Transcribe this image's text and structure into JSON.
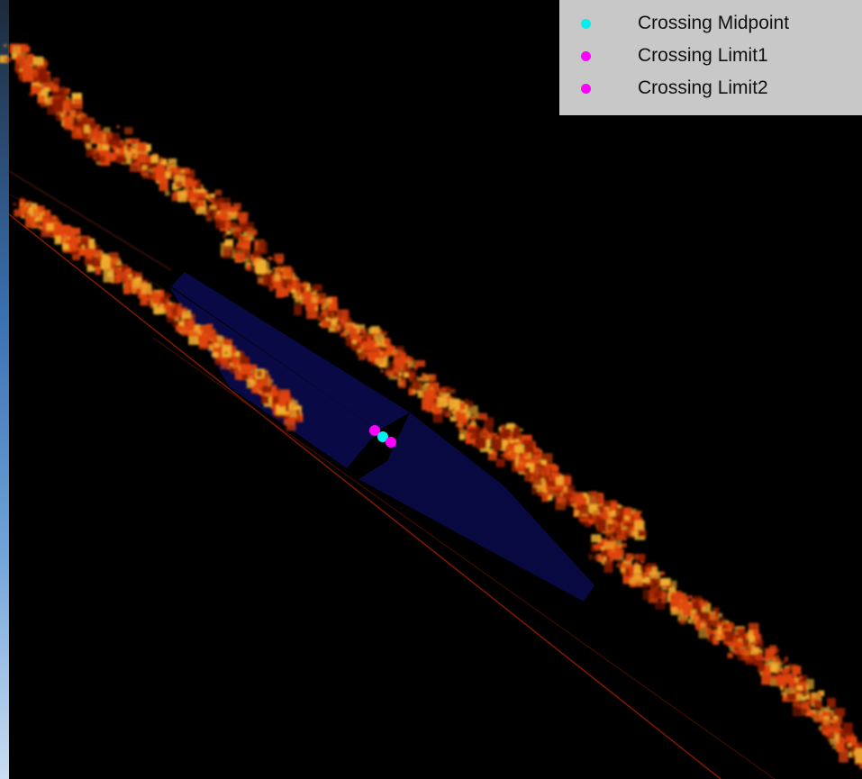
{
  "legend": {
    "items": [
      {
        "label": "Crossing Midpoint",
        "color": "#00f0f0"
      },
      {
        "label": "Crossing Limit1",
        "color": "#ff00ff"
      },
      {
        "label": "Crossing Limit2",
        "color": "#ff00ff"
      }
    ]
  },
  "colors": {
    "background": "#000000",
    "crossing_zone": "#0a0a46",
    "vegetation_dark": "#8a1a00",
    "vegetation_mid": "#e0440a",
    "vegetation_light": "#f0b030",
    "rail_line": "#7a1800"
  },
  "markers": {
    "midpoint_color": "#00f0f0",
    "limit_color": "#ff00ff"
  }
}
